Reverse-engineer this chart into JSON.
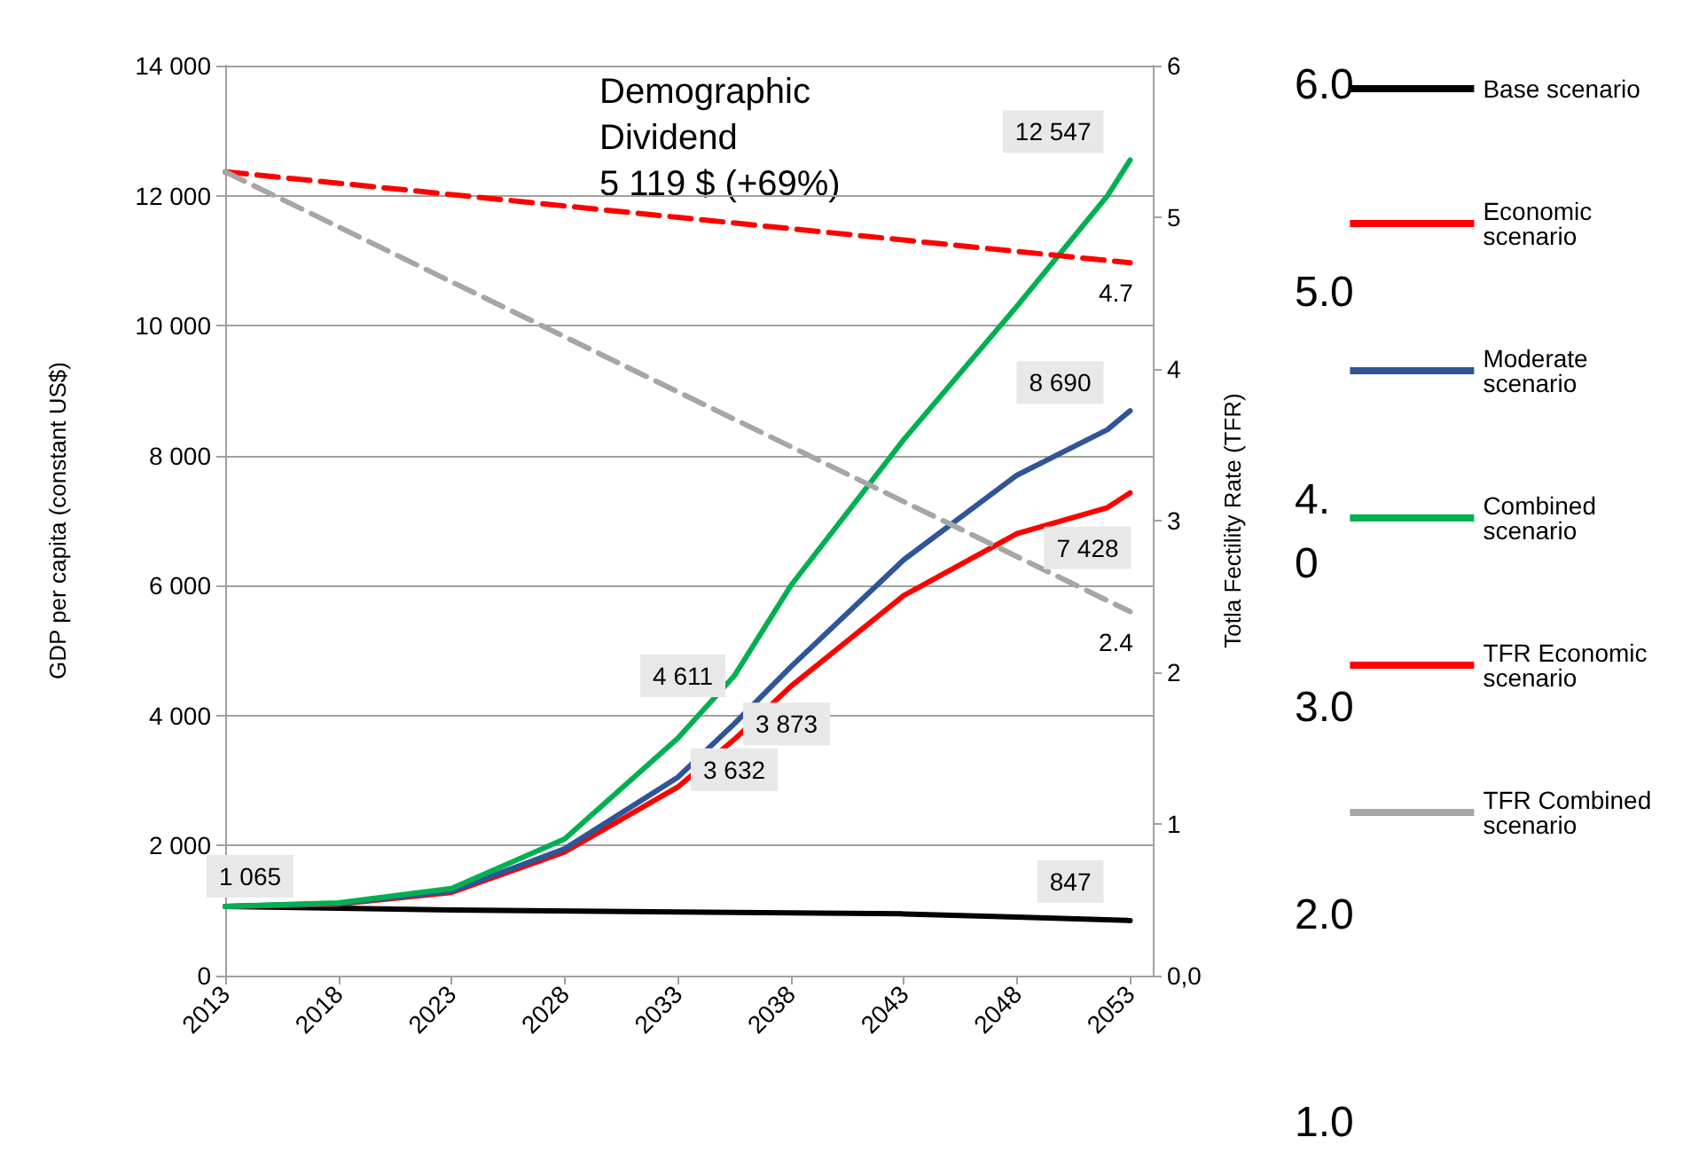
{
  "chart_data": {
    "type": "line",
    "ylabel": "GDP per capita (constant US$)",
    "y2label": "Totla Fectility Rate (TFR)",
    "annotations": [
      "Demographic\nDividend\n5 119 $ (+69%)",
      "6.0",
      "5.0",
      "4.\n0",
      "3.0",
      "2.0",
      "1.0"
    ],
    "xlim": [
      2013,
      2054
    ],
    "xticks": [
      2013,
      2018,
      2023,
      2028,
      2033,
      2038,
      2043,
      2048,
      2053
    ],
    "ylim": [
      0,
      14000
    ],
    "yticks": [
      {
        "value": 0,
        "label": "0"
      },
      {
        "value": 2000,
        "label": "2 000"
      },
      {
        "value": 4000,
        "label": "4 000"
      },
      {
        "value": 6000,
        "label": "6 000"
      },
      {
        "value": 8000,
        "label": "8 000"
      },
      {
        "value": 10000,
        "label": "10 000"
      },
      {
        "value": 12000,
        "label": "12 000"
      },
      {
        "value": 14000,
        "label": "14 000"
      }
    ],
    "y2lim": [
      0,
      6
    ],
    "y2ticks": [
      {
        "value": 0,
        "label": "0,0"
      },
      1,
      2,
      3,
      4,
      5,
      6
    ],
    "grid": "y",
    "legend": "right",
    "marker": "none",
    "series": [
      {
        "name": "Base scenario",
        "color": "#000000",
        "x": [
          2013,
          2023,
          2033,
          2043,
          2048,
          2053
        ],
        "values": [
          1065,
          1010,
          980,
          950,
          900,
          847
        ],
        "value_labels": [
          "1 065",
          null,
          null,
          null,
          null,
          "847"
        ]
      },
      {
        "name": "Economic scenario",
        "color": "#ff0000",
        "x": [
          2013,
          2018,
          2023,
          2028,
          2033,
          2035.5,
          2038,
          2043,
          2048,
          2052,
          2053
        ],
        "values": [
          1065,
          1100,
          1280,
          1900,
          2900,
          3632,
          4450,
          5850,
          6800,
          7200,
          7428
        ],
        "value_labels": [
          null,
          null,
          null,
          null,
          null,
          "3 632",
          null,
          null,
          null,
          null,
          "7 428"
        ]
      },
      {
        "name": "Moderate scenario",
        "color": "#2f5597",
        "x": [
          2013,
          2018,
          2023,
          2028,
          2033,
          2035.5,
          2038,
          2043,
          2048,
          2052,
          2053
        ],
        "values": [
          1065,
          1110,
          1300,
          1950,
          3050,
          3873,
          4750,
          6400,
          7700,
          8400,
          8690
        ],
        "value_labels": [
          null,
          null,
          null,
          null,
          null,
          "3 873",
          null,
          null,
          null,
          null,
          "8 690"
        ]
      },
      {
        "name": "Combined scenario",
        "color": "#00b050",
        "x": [
          2013,
          2018,
          2023,
          2028,
          2033,
          2035.5,
          2038,
          2043,
          2048,
          2052,
          2053
        ],
        "values": [
          1065,
          1120,
          1340,
          2100,
          3650,
          4611,
          6000,
          8250,
          10300,
          12000,
          12547
        ],
        "value_labels": [
          null,
          null,
          null,
          null,
          null,
          "4 611",
          null,
          null,
          null,
          null,
          "12 547"
        ]
      },
      {
        "name": "TFR Economic scenario",
        "color": "#ff0000",
        "axis": "y2",
        "line_style": "dashed",
        "x": [
          2013,
          2053
        ],
        "values": [
          5.3,
          4.7
        ],
        "value_labels": [
          null,
          "4.7"
        ]
      },
      {
        "name": "TFR Combined scenario",
        "color": "#a6a6a6",
        "axis": "y2",
        "line_style": "dashed",
        "x": [
          2013,
          2053
        ],
        "values": [
          5.3,
          2.4
        ],
        "value_labels": [
          null,
          "2.4"
        ]
      }
    ]
  }
}
